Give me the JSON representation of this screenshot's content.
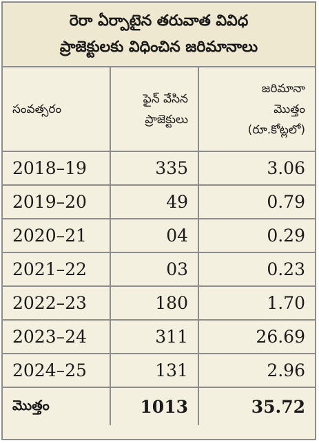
{
  "title": {
    "line1": "రెరా ఏర్పాటైన తరువాత వివిధ",
    "line2": "ప్రాజెక్టులకు విధించిన జరిమానాలు"
  },
  "headers": {
    "year": "సంవత్సరం",
    "projects_line1": "ఫైన్ వేసిన",
    "projects_line2": "ప్రాజెక్టులు",
    "amount_line1": "జరిమానా",
    "amount_line2": "మొత్తం",
    "amount_line3": "(రూ.కోట్లలో)"
  },
  "rows": [
    {
      "year": "2018–19",
      "projects": "335",
      "amount": "3.06"
    },
    {
      "year": "2019–20",
      "projects": "49",
      "amount": "0.79"
    },
    {
      "year": "2020–21",
      "projects": "04",
      "amount": "0.29"
    },
    {
      "year": "2021–22",
      "projects": "03",
      "amount": "0.23"
    },
    {
      "year": "2022–23",
      "projects": "180",
      "amount": "1.70"
    },
    {
      "year": "2023–24",
      "projects": "311",
      "amount": "26.69"
    },
    {
      "year": "2024–25",
      "projects": "131",
      "amount": "2.96"
    }
  ],
  "total": {
    "label": "మొత్తం",
    "projects": "1013",
    "amount": "35.72"
  }
}
